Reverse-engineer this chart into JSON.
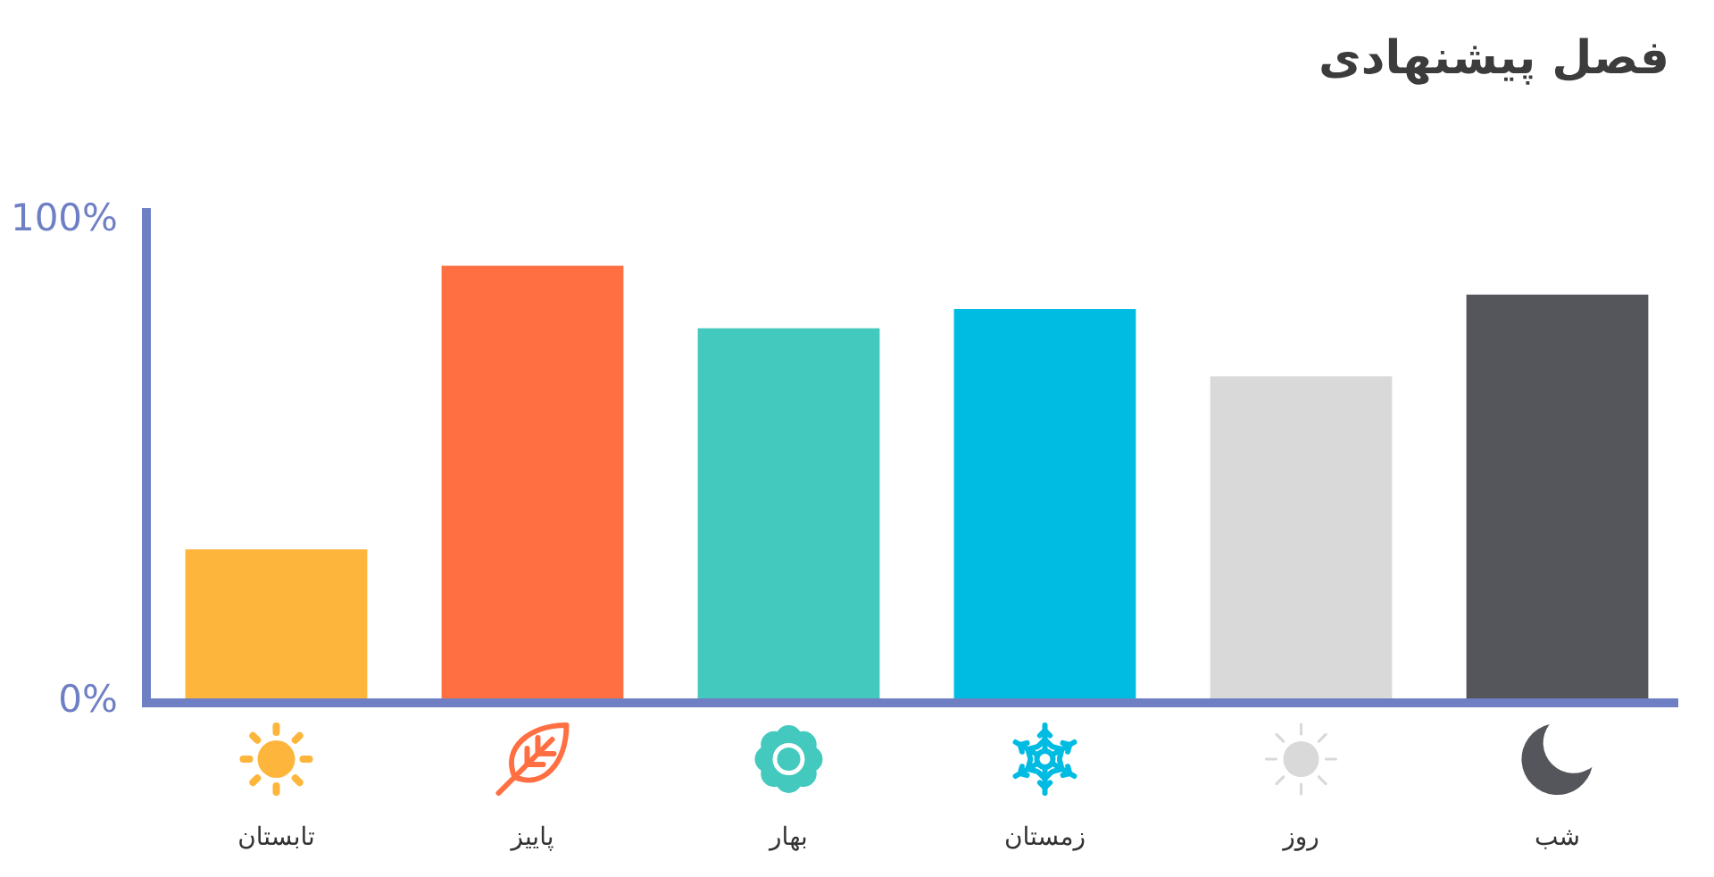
{
  "chart_data": {
    "type": "bar",
    "title": "فصل پیشنهادی",
    "categories": [
      "تابستان",
      "پاییز",
      "بهار",
      "زمستان",
      "روز",
      "شب"
    ],
    "values": [
      31,
      90,
      77,
      81,
      67,
      84
    ],
    "colors": [
      "#fdb53c",
      "#ff6f42",
      "#43c9bd",
      "#00bce2",
      "#d9d9d9",
      "#54565b"
    ],
    "ylim": [
      0,
      102
    ],
    "yticks": [
      {
        "value": 0,
        "label": "0%"
      },
      {
        "value": 100,
        "label": "100%"
      }
    ]
  }
}
